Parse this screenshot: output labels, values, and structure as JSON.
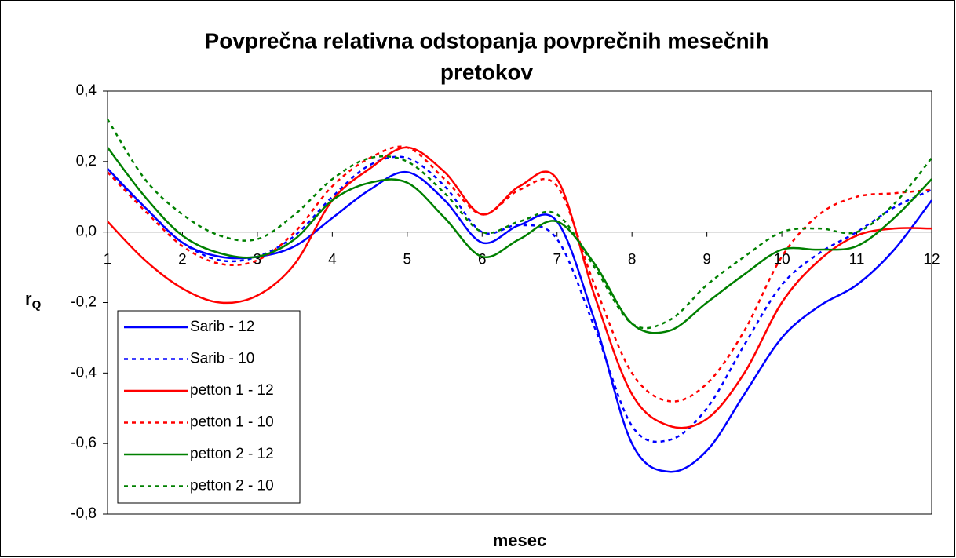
{
  "chart_data": {
    "type": "line",
    "title": [
      "Povprečna relativna odstopanja povprečnih mesečnih",
      "pretokov"
    ],
    "xlabel": "mesec",
    "ylabel": "r",
    "ylabel_subscript": "Q",
    "x": [
      1,
      1.5,
      2,
      2.5,
      3,
      3.5,
      4,
      4.5,
      5,
      5.5,
      6,
      6.5,
      7,
      7.5,
      8,
      8.5,
      9,
      9.5,
      10,
      10.5,
      11,
      11.5,
      12
    ],
    "series": [
      {
        "name": "Sarib - 12",
        "color": "#0000ff",
        "line_style": "solid",
        "values": [
          0.18,
          0.07,
          -0.03,
          -0.07,
          -0.07,
          -0.04,
          0.04,
          0.12,
          0.17,
          0.09,
          -0.03,
          0.02,
          0.03,
          -0.25,
          -0.6,
          -0.68,
          -0.62,
          -0.46,
          -0.3,
          -0.21,
          -0.15,
          -0.05,
          0.09
        ]
      },
      {
        "name": "Sarib - 10",
        "color": "#0000ff",
        "line_style": "dotted",
        "values": [
          0.17,
          0.07,
          -0.03,
          -0.08,
          -0.07,
          -0.01,
          0.1,
          0.19,
          0.21,
          0.13,
          0.0,
          0.02,
          -0.02,
          -0.27,
          -0.55,
          -0.59,
          -0.5,
          -0.32,
          -0.15,
          -0.06,
          0.0,
          0.07,
          0.12
        ]
      },
      {
        "name": "petton 1 - 12",
        "color": "#ff0000",
        "line_style": "solid",
        "values": [
          0.03,
          -0.08,
          -0.16,
          -0.2,
          -0.18,
          -0.09,
          0.09,
          0.18,
          0.24,
          0.17,
          0.05,
          0.13,
          0.15,
          -0.18,
          -0.46,
          -0.55,
          -0.53,
          -0.4,
          -0.2,
          -0.08,
          -0.01,
          0.01,
          0.01
        ]
      },
      {
        "name": "petton 1 - 10",
        "color": "#ff0000",
        "line_style": "dotted",
        "values": [
          0.17,
          0.06,
          -0.04,
          -0.09,
          -0.08,
          0.0,
          0.13,
          0.21,
          0.24,
          0.15,
          0.05,
          0.12,
          0.13,
          -0.15,
          -0.4,
          -0.48,
          -0.43,
          -0.28,
          -0.07,
          0.05,
          0.1,
          0.11,
          0.12
        ]
      },
      {
        "name": "petton 2 - 12",
        "color": "#008000",
        "line_style": "solid",
        "values": [
          0.24,
          0.1,
          -0.01,
          -0.06,
          -0.07,
          -0.02,
          0.09,
          0.14,
          0.14,
          0.04,
          -0.07,
          -0.02,
          0.03,
          -0.09,
          -0.26,
          -0.28,
          -0.2,
          -0.12,
          -0.05,
          -0.05,
          -0.04,
          0.04,
          0.15
        ]
      },
      {
        "name": "petton 2 - 10",
        "color": "#008000",
        "line_style": "dotted",
        "values": [
          0.32,
          0.15,
          0.05,
          -0.01,
          -0.02,
          0.05,
          0.15,
          0.21,
          0.2,
          0.11,
          0.0,
          0.03,
          0.05,
          -0.1,
          -0.26,
          -0.25,
          -0.15,
          -0.07,
          0.0,
          0.01,
          0.0,
          0.08,
          0.21
        ]
      }
    ],
    "xlim": [
      1,
      12
    ],
    "xticks": [
      1,
      2,
      3,
      4,
      5,
      6,
      7,
      8,
      9,
      10,
      11,
      12
    ],
    "ylim": [
      -0.8,
      0.4
    ],
    "yticks": [
      {
        "value": -0.8,
        "label": "-0,8"
      },
      {
        "value": -0.6,
        "label": "-0,6"
      },
      {
        "value": -0.4,
        "label": "-0,4"
      },
      {
        "value": -0.2,
        "label": "-0,2"
      },
      {
        "value": 0,
        "label": "0,0"
      },
      {
        "value": 0.2,
        "label": "0,2"
      },
      {
        "value": 0.4,
        "label": "0,4"
      }
    ],
    "legend": "lower left",
    "grid": false
  }
}
